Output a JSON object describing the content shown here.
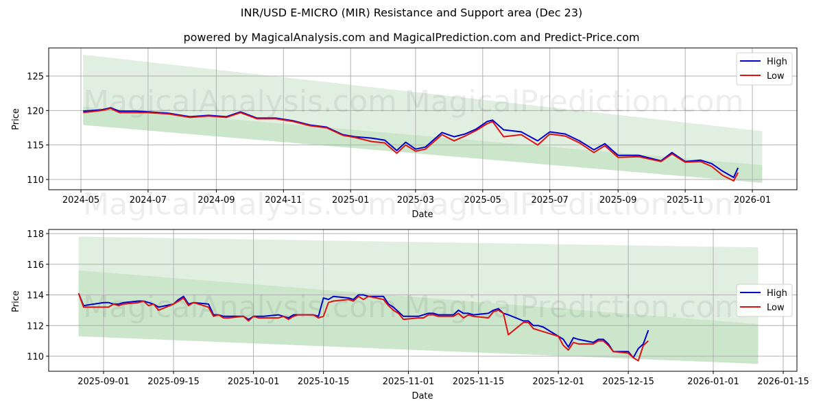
{
  "title": "INR/USD E-MICRO (MIR) Resistance and Support area (Dec 23)",
  "subtitle": "powered by MagicalAnalysis.com and MagicalPrediction.com and Predict-Price.com",
  "watermarks": [
    "MagicalAnalysis.com",
    "MagicalPrediction.com"
  ],
  "colors": {
    "high": "#0000cc",
    "low": "#dd1111",
    "band_resistance": "#e1efe1",
    "band_support": "#cce6cc",
    "grid": "#b0b0b0"
  },
  "legend": {
    "high": "High",
    "low": "Low"
  },
  "chart_data": [
    {
      "type": "line",
      "title": "",
      "xlabel": "Date",
      "ylabel": "Price",
      "ylim": [
        108.5,
        129.5
      ],
      "yticks": [
        110,
        115,
        120,
        125
      ],
      "xticks": [
        "2024-05",
        "2024-07",
        "2024-09",
        "2024-11",
        "2025-01",
        "2025-03",
        "2025-05",
        "2025-07",
        "2025-09",
        "2025-11",
        "2026-01"
      ],
      "grid": true,
      "legend_position": "upper right",
      "bands": [
        {
          "name": "resistance",
          "x": [
            "2024-05-03",
            "2026-01-10"
          ],
          "upper": [
            128.1,
            117.0
          ],
          "lower": [
            120.6,
            112.1
          ]
        },
        {
          "name": "support",
          "x": [
            "2024-05-03",
            "2026-01-10"
          ],
          "upper": [
            120.6,
            112.1
          ],
          "lower": [
            117.9,
            109.5
          ]
        }
      ],
      "x": [
        "2024-05-03",
        "2024-05-20",
        "2024-05-28",
        "2024-06-05",
        "2024-06-20",
        "2024-07-01",
        "2024-07-20",
        "2024-08-08",
        "2024-08-25",
        "2024-09-10",
        "2024-09-23",
        "2024-10-08",
        "2024-10-25",
        "2024-11-10",
        "2024-11-25",
        "2024-12-10",
        "2024-12-25",
        "2025-01-05",
        "2025-01-20",
        "2025-02-01",
        "2025-02-12",
        "2025-02-20",
        "2025-03-01",
        "2025-03-10",
        "2025-03-25",
        "2025-04-05",
        "2025-04-15",
        "2025-04-25",
        "2025-05-05",
        "2025-05-10",
        "2025-05-20",
        "2025-06-05",
        "2025-06-20",
        "2025-07-01",
        "2025-07-15",
        "2025-07-28",
        "2025-08-10",
        "2025-08-20",
        "2025-09-01",
        "2025-09-20",
        "2025-10-10",
        "2025-10-20",
        "2025-11-01",
        "2025-11-15",
        "2025-11-25",
        "2025-12-05",
        "2025-12-15",
        "2025-12-19"
      ],
      "series": [
        {
          "name": "High",
          "values": [
            119.9,
            120.1,
            120.4,
            119.9,
            119.9,
            119.8,
            119.6,
            119.1,
            119.3,
            119.1,
            119.8,
            118.9,
            118.9,
            118.5,
            117.9,
            117.6,
            116.5,
            116.2,
            116.0,
            115.7,
            114.2,
            115.4,
            114.4,
            114.7,
            116.8,
            116.2,
            116.6,
            117.3,
            118.4,
            118.6,
            117.2,
            116.9,
            115.6,
            116.9,
            116.6,
            115.6,
            114.3,
            115.2,
            113.5,
            113.5,
            112.7,
            113.9,
            112.6,
            112.8,
            112.3,
            111.2,
            110.3,
            111.7
          ]
        },
        {
          "name": "Low",
          "values": [
            119.7,
            120.0,
            120.3,
            119.7,
            119.7,
            119.7,
            119.5,
            119.0,
            119.2,
            119.0,
            119.7,
            118.8,
            118.8,
            118.4,
            117.8,
            117.5,
            116.4,
            116.1,
            115.5,
            115.3,
            113.8,
            115.0,
            114.1,
            114.4,
            116.5,
            115.6,
            116.3,
            117.1,
            118.1,
            118.4,
            116.2,
            116.5,
            115.0,
            116.6,
            116.3,
            115.3,
            113.9,
            114.9,
            113.2,
            113.3,
            112.6,
            113.7,
            112.5,
            112.6,
            111.9,
            110.6,
            109.8,
            111.0
          ]
        }
      ]
    },
    {
      "type": "line",
      "title": "",
      "xlabel": "Date",
      "ylabel": "Price",
      "ylim": [
        109.0,
        118.3
      ],
      "yticks": [
        110,
        112,
        114,
        116,
        118
      ],
      "xticks": [
        "2025-09-01",
        "2025-09-15",
        "2025-10-01",
        "2025-10-15",
        "2025-11-01",
        "2025-11-15",
        "2025-12-01",
        "2025-12-15",
        "2026-01-01",
        "2026-01-15"
      ],
      "grid": true,
      "legend_position": "center right",
      "bands": [
        {
          "name": "resistance",
          "x": [
            "2025-08-27",
            "2026-01-10"
          ],
          "upper": [
            117.8,
            117.1
          ],
          "lower": [
            115.6,
            112.1
          ]
        },
        {
          "name": "support",
          "x": [
            "2025-08-27",
            "2026-01-10"
          ],
          "upper": [
            115.6,
            112.1
          ],
          "lower": [
            111.3,
            109.5
          ]
        }
      ],
      "x": [
        "2025-08-27",
        "2025-08-28",
        "2025-09-01",
        "2025-09-02",
        "2025-09-03",
        "2025-09-04",
        "2025-09-05",
        "2025-09-08",
        "2025-09-09",
        "2025-09-10",
        "2025-09-11",
        "2025-09-12",
        "2025-09-15",
        "2025-09-16",
        "2025-09-17",
        "2025-09-18",
        "2025-09-19",
        "2025-09-22",
        "2025-09-23",
        "2025-09-24",
        "2025-09-25",
        "2025-09-26",
        "2025-09-29",
        "2025-09-30",
        "2025-10-01",
        "2025-10-02",
        "2025-10-03",
        "2025-10-06",
        "2025-10-07",
        "2025-10-08",
        "2025-10-09",
        "2025-10-10",
        "2025-10-13",
        "2025-10-14",
        "2025-10-15",
        "2025-10-16",
        "2025-10-17",
        "2025-10-20",
        "2025-10-21",
        "2025-10-22",
        "2025-10-23",
        "2025-10-24",
        "2025-10-27",
        "2025-10-28",
        "2025-10-29",
        "2025-10-30",
        "2025-10-31",
        "2025-11-03",
        "2025-11-04",
        "2025-11-05",
        "2025-11-06",
        "2025-11-07",
        "2025-11-10",
        "2025-11-11",
        "2025-11-12",
        "2025-11-13",
        "2025-11-14",
        "2025-11-17",
        "2025-11-18",
        "2025-11-19",
        "2025-11-20",
        "2025-11-21",
        "2025-11-24",
        "2025-11-25",
        "2025-11-26",
        "2025-11-27",
        "2025-11-28",
        "2025-12-01",
        "2025-12-02",
        "2025-12-03",
        "2025-12-04",
        "2025-12-05",
        "2025-12-08",
        "2025-12-09",
        "2025-12-10",
        "2025-12-11",
        "2025-12-12",
        "2025-12-15",
        "2025-12-16",
        "2025-12-17",
        "2025-12-18",
        "2025-12-19"
      ],
      "series": [
        {
          "name": "High",
          "values": [
            114.1,
            113.3,
            113.5,
            113.5,
            113.4,
            113.4,
            113.5,
            113.6,
            113.6,
            113.5,
            113.4,
            113.2,
            113.4,
            113.7,
            113.9,
            113.4,
            113.5,
            113.4,
            112.7,
            112.7,
            112.6,
            112.6,
            112.6,
            112.4,
            112.6,
            112.6,
            112.6,
            112.7,
            112.6,
            112.5,
            112.7,
            112.7,
            112.7,
            112.6,
            113.8,
            113.7,
            113.9,
            113.8,
            113.7,
            114.0,
            114.0,
            113.9,
            113.9,
            113.4,
            113.2,
            112.9,
            112.6,
            112.6,
            112.7,
            112.8,
            112.8,
            112.7,
            112.7,
            113.0,
            112.8,
            112.8,
            112.7,
            112.8,
            113.0,
            113.1,
            112.8,
            112.7,
            112.3,
            112.3,
            112.0,
            112.0,
            111.9,
            111.3,
            111.1,
            110.6,
            111.2,
            111.1,
            110.9,
            111.1,
            111.1,
            110.8,
            110.3,
            110.3,
            109.9,
            110.5,
            110.8,
            111.7
          ]
        },
        {
          "name": "Low",
          "values": [
            114.1,
            113.2,
            113.2,
            113.2,
            113.4,
            113.3,
            113.4,
            113.5,
            113.6,
            113.3,
            113.4,
            113.0,
            113.4,
            113.6,
            113.8,
            113.3,
            113.5,
            113.2,
            112.6,
            112.7,
            112.5,
            112.5,
            112.6,
            112.3,
            112.6,
            112.5,
            112.5,
            112.5,
            112.6,
            112.4,
            112.6,
            112.7,
            112.7,
            112.5,
            112.6,
            113.5,
            113.6,
            113.7,
            113.6,
            113.9,
            113.7,
            113.9,
            113.7,
            113.3,
            113.0,
            112.8,
            112.4,
            112.5,
            112.5,
            112.7,
            112.7,
            112.6,
            112.6,
            112.8,
            112.5,
            112.7,
            112.6,
            112.5,
            112.9,
            113.0,
            112.8,
            111.4,
            112.2,
            112.2,
            111.8,
            111.7,
            111.6,
            111.3,
            110.7,
            110.4,
            110.9,
            110.8,
            110.8,
            111.0,
            111.0,
            110.7,
            110.3,
            110.2,
            109.9,
            109.7,
            110.7,
            111.0
          ]
        }
      ]
    }
  ]
}
